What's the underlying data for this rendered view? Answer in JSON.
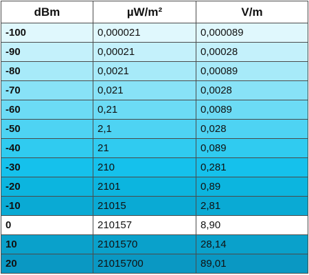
{
  "table": {
    "header": [
      "dBm",
      "µW/m²",
      "V/m"
    ],
    "rows": [
      [
        "-100",
        "0,000021",
        "0,000089"
      ],
      [
        "-90",
        "0,00021",
        "0,00028"
      ],
      [
        "-80",
        "0,0021",
        "0,00089"
      ],
      [
        "-70",
        "0,021",
        "0,0028"
      ],
      [
        "-60",
        "0,21",
        "0,0089"
      ],
      [
        "-50",
        "2,1",
        "0,028"
      ],
      [
        "-40",
        "21",
        "0,089"
      ],
      [
        "-30",
        "210",
        "0,281"
      ],
      [
        "-20",
        "2101",
        "0,89"
      ],
      [
        "-10",
        "21015",
        "2,81"
      ],
      [
        "0",
        "210157",
        "8,90"
      ],
      [
        "10",
        "2101570",
        "28,14"
      ],
      [
        "20",
        "21015700",
        "89,01"
      ]
    ]
  }
}
